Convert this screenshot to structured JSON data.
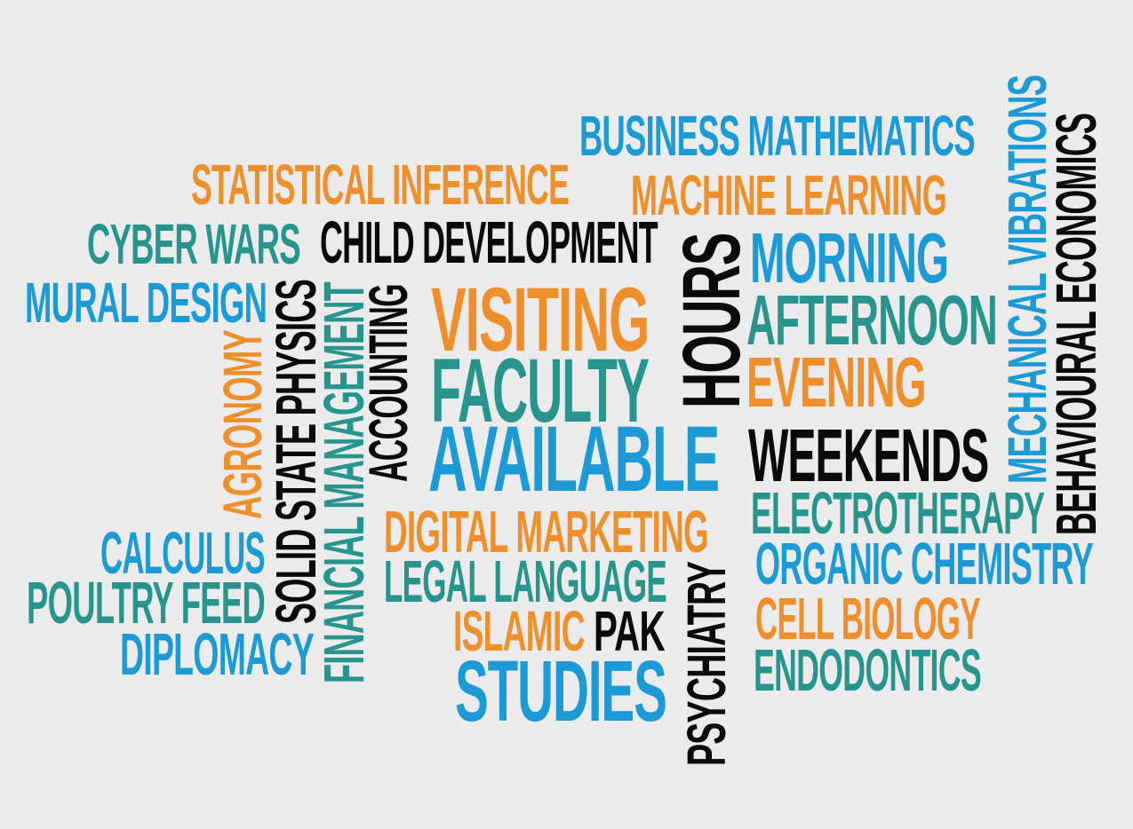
{
  "colors": {
    "blue": "#1c9ad6",
    "orange": "#ef8f2c",
    "teal": "#27958e",
    "black": "#0a0a0a",
    "background": "#ebebeb"
  },
  "words": {
    "business_mathematics": "BUSINESS MATHEMATICS",
    "statistical_inference": "STATISTICAL INFERENCE",
    "machine_learning": "MACHINE LEARNING",
    "cyber_wars": "CYBER WARS",
    "child_development": "CHILD DEVELOPMENT",
    "mural_design": "MURAL DESIGN",
    "visiting": "VISITING",
    "faculty": "FACULTY",
    "available": "AVAILABLE",
    "hours": "HOURS",
    "morning": "MORNING",
    "afternoon": "AFTERNOON",
    "evening": "EVENING",
    "weekends": "WEEKENDS",
    "mechanical_vibrations": "MECHANICAL VIBRATIONS",
    "behavioural_economics": "BEHAVIOURAL ECONOMICS",
    "agronomy": "AGRONOMY",
    "solid_state_physics": "SOLID STATE PHYSICS",
    "financial_management": "FINANCIAL MANAGEMENT",
    "accounting": "ACCOUNTING",
    "digital_marketing": "DIGITAL MARKETING",
    "legal_language": "LEGAL LANGUAGE",
    "islamic": "ISLAMIC",
    "pak": "PAK",
    "studies": "STUDIES",
    "psychiatry": "PSYCHIATRY",
    "electrotherapy": "ELECTROTHERAPY",
    "organic_chemistry": "ORGANIC CHEMISTRY",
    "cell_biology": "CELL BIOLOGY",
    "endodontics": "ENDODONTICS",
    "calculus": "CALCULUS",
    "poultry_feed": "POULTRY FEED",
    "diplomacy": "DIPLOMACY"
  }
}
